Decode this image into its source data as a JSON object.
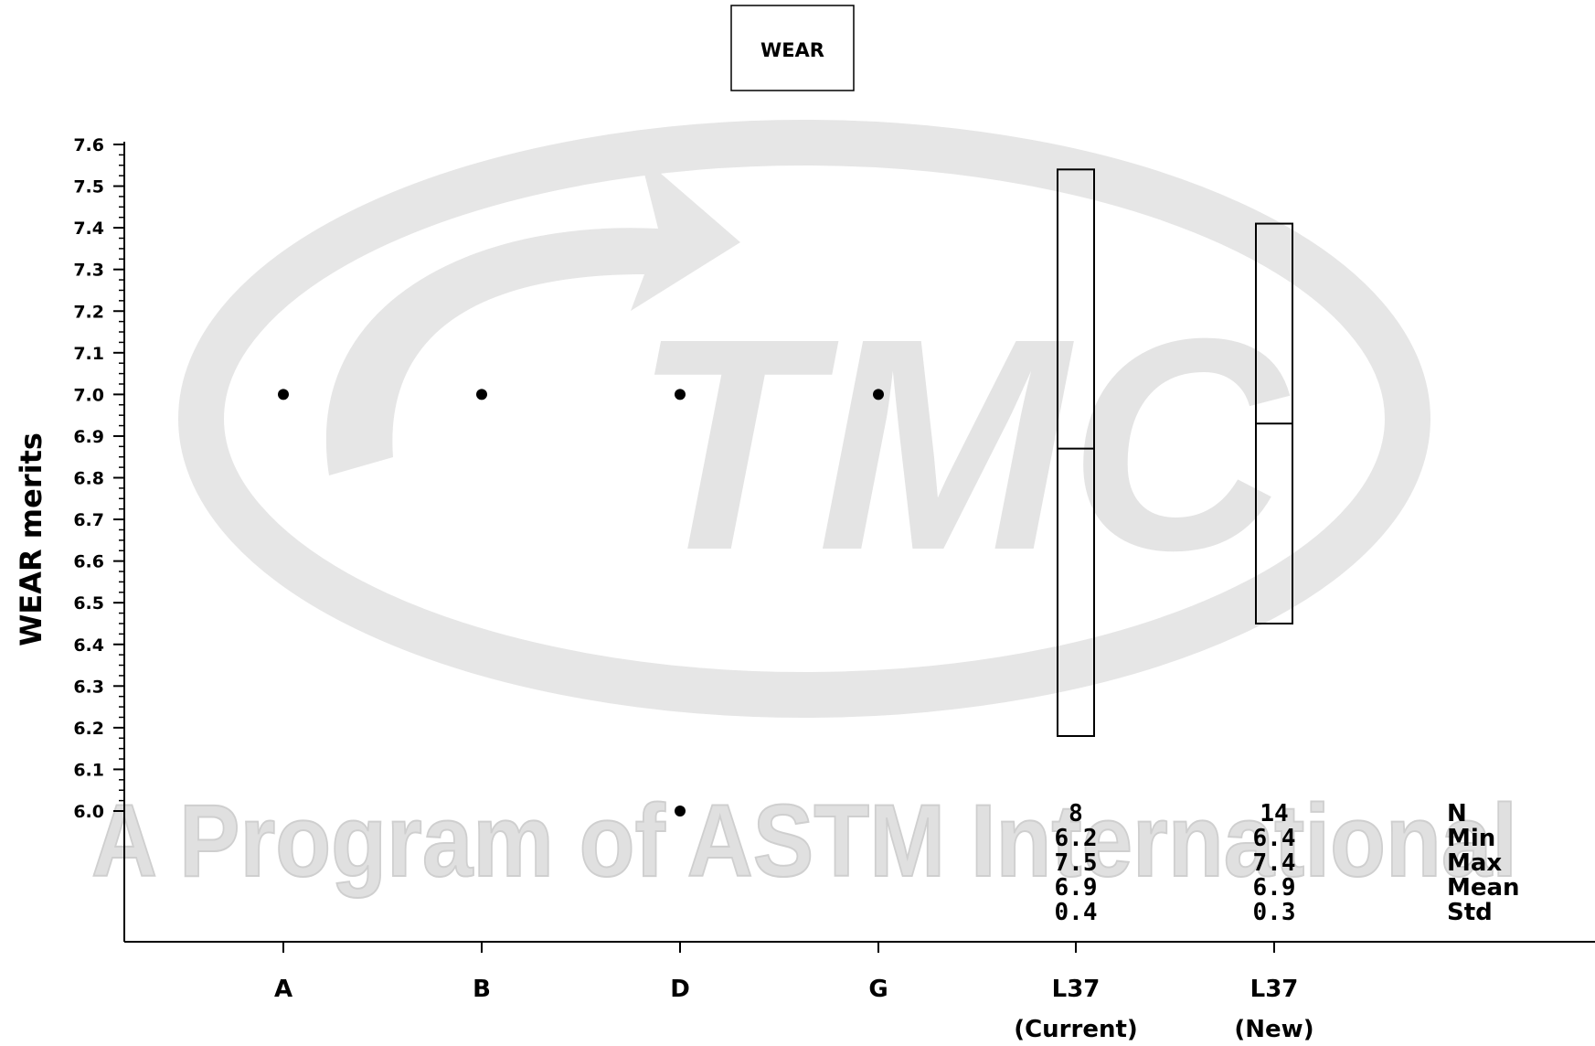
{
  "watermark": {
    "logo_letters": "TMC",
    "tagline": "A Program of ASTM International"
  },
  "chart_data": {
    "type": "scatter",
    "legend": [
      "WEAR"
    ],
    "legend_position": "top-center",
    "ylabel": "WEAR merits",
    "xlabel": "",
    "ylim": [
      6.0,
      7.6
    ],
    "y_ticks": [
      "6.0",
      "6.1",
      "6.2",
      "6.3",
      "6.4",
      "6.5",
      "6.6",
      "6.7",
      "6.8",
      "6.9",
      "7.0",
      "7.1",
      "7.2",
      "7.3",
      "7.4",
      "7.5",
      "7.6"
    ],
    "categories": [
      {
        "lines": [
          "A"
        ]
      },
      {
        "lines": [
          "B"
        ]
      },
      {
        "lines": [
          "D"
        ]
      },
      {
        "lines": [
          "G"
        ]
      },
      {
        "lines": [
          "L37",
          "(Current)"
        ]
      },
      {
        "lines": [
          "L37",
          "(New)"
        ]
      }
    ],
    "points": [
      {
        "category": "A",
        "y": 7.0
      },
      {
        "category": "B",
        "y": 7.0
      },
      {
        "category": "D",
        "y": 7.0
      },
      {
        "category": "D",
        "y": 6.0
      },
      {
        "category": "G",
        "y": 7.0
      }
    ],
    "boxes": [
      {
        "category": "L37 (Current)",
        "min": 6.18,
        "max": 7.54,
        "mean": 6.87
      },
      {
        "category": "L37 (New)",
        "min": 6.45,
        "max": 7.41,
        "mean": 6.93
      }
    ],
    "stats": {
      "labels": [
        "N",
        "Min",
        "Max",
        "Mean",
        "Std"
      ],
      "columns": [
        {
          "category": "L37 (Current)",
          "values": [
            "8",
            "6.2",
            "7.5",
            "6.9",
            "0.4"
          ]
        },
        {
          "category": "L37 (New)",
          "values": [
            "14",
            "6.4",
            "7.4",
            "6.9",
            "0.3"
          ]
        }
      ]
    },
    "grid": false
  }
}
